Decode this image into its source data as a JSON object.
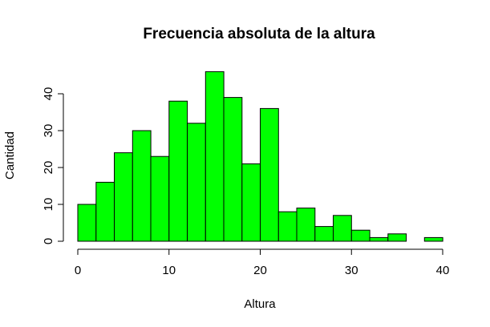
{
  "chart_data": {
    "type": "bar",
    "title": "Frecuencia absoluta de la altura",
    "xlabel": "Altura",
    "ylabel": "Cantidad",
    "bin_edges": [
      0,
      2,
      4,
      6,
      8,
      10,
      12,
      14,
      16,
      18,
      20,
      22,
      24,
      26,
      28,
      30,
      32,
      34,
      36,
      38,
      40
    ],
    "values": [
      10,
      16,
      24,
      30,
      23,
      38,
      32,
      46,
      39,
      21,
      36,
      8,
      9,
      4,
      7,
      3,
      1,
      2,
      0,
      1
    ],
    "xlim": [
      0,
      40
    ],
    "ylim": [
      0,
      46
    ],
    "xticks": [
      "0",
      "10",
      "20",
      "30",
      "40"
    ],
    "yticks": [
      "0",
      "10",
      "20",
      "30",
      "40"
    ],
    "bar_color": "#00ff00",
    "grid": false,
    "legend": "none"
  }
}
